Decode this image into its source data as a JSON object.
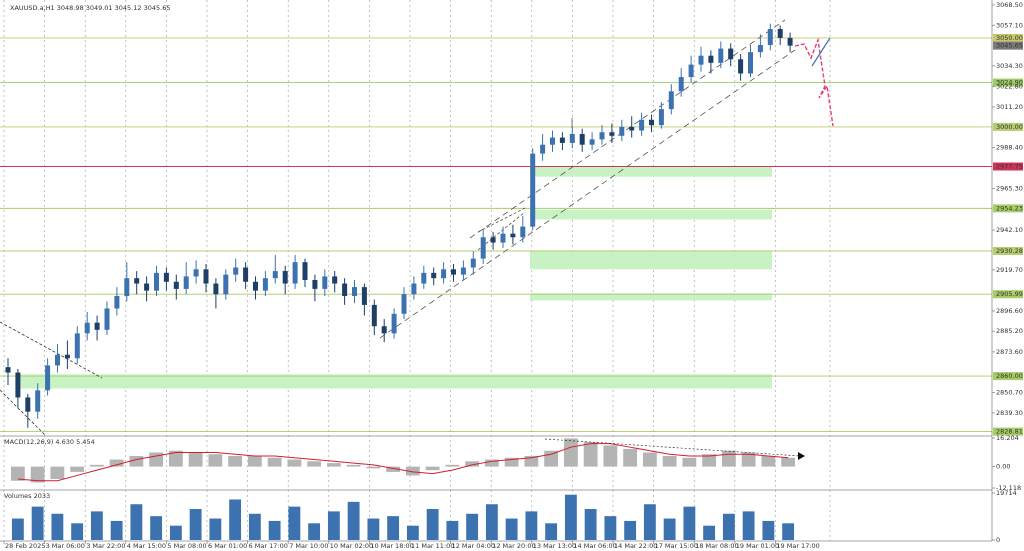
{
  "chart_data": {
    "type": "candlestick",
    "title": "XAUUSD.a,H1  3048.98 3049.01 3045.12 3045.65",
    "ylim": [
      2826.9,
      3071.3
    ],
    "yticks": [
      {
        "value": 3068.5,
        "label": "3068.50"
      },
      {
        "value": 3057.1,
        "label": "3057.10"
      },
      {
        "value": 3034.3,
        "label": "3034.30"
      },
      {
        "value": 3022.8,
        "label": "3022.80"
      },
      {
        "value": 3011.2,
        "label": "3011.20"
      },
      {
        "value": 2988.4,
        "label": "2988.40"
      },
      {
        "value": 2965.3,
        "label": "2965.30"
      },
      {
        "value": 2942.1,
        "label": "2942.10"
      },
      {
        "value": 2919.7,
        "label": "2919.70"
      },
      {
        "value": 2896.6,
        "label": "2896.60"
      },
      {
        "value": 2885.2,
        "label": "2885.20"
      },
      {
        "value": 2873.6,
        "label": "2873.60"
      },
      {
        "value": 2850.7,
        "label": "2850.70"
      },
      {
        "value": 2839.3,
        "label": "2839.30"
      }
    ],
    "xticks": [
      "28 Feb 2025",
      "3 Mar 06:00",
      "3 Mar 22:00",
      "4 Mar 15:00",
      "5 Mar 08:00",
      "6 Mar 01:00",
      "6 Mar 17:00",
      "7 Mar 10:00",
      "10 Mar 02:00",
      "10 Mar 18:00",
      "11 Mar 11:00",
      "12 Mar 04:00",
      "12 Mar 20:00",
      "13 Mar 13:00",
      "14 Mar 06:00",
      "14 Mar 22:00",
      "17 Mar 15:00",
      "18 Mar 08:00",
      "19 Mar 01:00",
      "19 Mar 17:00"
    ],
    "up_color": "#3d72b0",
    "down_color": "#1e3f66",
    "open": [
      2865,
      2862,
      2848,
      2840,
      2852,
      2866,
      2872,
      2870,
      2884,
      2890,
      2886,
      2898,
      2905,
      2915,
      2912,
      2908,
      2918,
      2913,
      2909,
      2916,
      2920,
      2912,
      2906,
      2917,
      2921,
      2913,
      2908,
      2915,
      2919,
      2912,
      2924,
      2914,
      2909,
      2916,
      2912,
      2905,
      2910,
      2900,
      2888,
      2884,
      2895,
      2906,
      2912,
      2918,
      2915,
      2920,
      2917,
      2921,
      2926,
      2938,
      2935,
      2940,
      2938,
      2944,
      2985,
      2990,
      2994,
      2991,
      2996,
      2990,
      2993,
      2997,
      2995,
      3000,
      2998,
      3004,
      3001,
      3010,
      3020,
      3028,
      3035,
      3040,
      3036,
      3044,
      3038,
      3030,
      3042,
      3046,
      3055,
      3050
    ],
    "high": [
      2870,
      2864,
      2850,
      2856,
      2870,
      2878,
      2880,
      2888,
      2896,
      2894,
      2902,
      2910,
      2924,
      2919,
      2916,
      2922,
      2921,
      2917,
      2924,
      2925,
      2923,
      2915,
      2920,
      2926,
      2924,
      2916,
      2919,
      2928,
      2922,
      2928,
      2926,
      2917,
      2920,
      2919,
      2915,
      2914,
      2912,
      2903,
      2892,
      2898,
      2910,
      2916,
      2922,
      2921,
      2924,
      2923,
      2925,
      2930,
      2942,
      2941,
      2944,
      2945,
      2950,
      2988,
      2996,
      2998,
      2997,
      3000,
      2999,
      2997,
      3001,
      3002,
      3004,
      3006,
      3008,
      3007,
      3014,
      3024,
      3033,
      3040,
      3045,
      3043,
      3048,
      3047,
      3041,
      3046,
      3052,
      3058,
      3057,
      3053
    ],
    "low": [
      2855,
      2842,
      2831,
      2836,
      2849,
      2862,
      2864,
      2867,
      2880,
      2880,
      2883,
      2894,
      2902,
      2906,
      2902,
      2905,
      2908,
      2903,
      2906,
      2912,
      2907,
      2898,
      2903,
      2913,
      2909,
      2903,
      2905,
      2912,
      2906,
      2909,
      2910,
      2902,
      2905,
      2907,
      2900,
      2901,
      2894,
      2883,
      2879,
      2881,
      2892,
      2903,
      2909,
      2911,
      2912,
      2913,
      2914,
      2917,
      2923,
      2931,
      2932,
      2934,
      2935,
      2942,
      2981,
      2986,
      2987,
      2988,
      2986,
      2987,
      2990,
      2991,
      2992,
      2994,
      2995,
      2997,
      2999,
      3007,
      3017,
      3025,
      3031,
      3030,
      3033,
      3034,
      3026,
      3028,
      3039,
      3043,
      3046,
      3042
    ],
    "close": [
      2862,
      2848,
      2840,
      2852,
      2866,
      2872,
      2870,
      2884,
      2890,
      2886,
      2898,
      2905,
      2915,
      2912,
      2908,
      2918,
      2913,
      2909,
      2916,
      2920,
      2912,
      2906,
      2917,
      2921,
      2913,
      2908,
      2915,
      2919,
      2912,
      2924,
      2914,
      2909,
      2916,
      2912,
      2905,
      2910,
      2900,
      2888,
      2884,
      2895,
      2906,
      2912,
      2918,
      2915,
      2920,
      2917,
      2921,
      2926,
      2938,
      2935,
      2940,
      2938,
      2944,
      2985,
      2990,
      2994,
      2991,
      2996,
      2990,
      2993,
      2997,
      2995,
      3000,
      2998,
      3004,
      3001,
      3010,
      3020,
      3028,
      3035,
      3040,
      3036,
      3044,
      3038,
      3030,
      3042,
      3046,
      3055,
      3050,
      3045.65
    ],
    "levels": [
      {
        "value": 3050,
        "label": "3050.00",
        "color": "#c6c86a"
      },
      {
        "value": 3045.65,
        "label": "3045.65",
        "color": "#7a7a7a"
      },
      {
        "value": 3024.9,
        "label": "3024.90",
        "color": "#9ccf62"
      },
      {
        "value": 3000,
        "label": "3000.00",
        "color": "#b8cc70"
      },
      {
        "value": 2977.75,
        "label": "2977.75",
        "color": "#cf3358"
      },
      {
        "value": 2954.23,
        "label": "2954.23",
        "color": "#a8cc66"
      },
      {
        "value": 2930.28,
        "label": "2930.28",
        "color": "#b8cc70"
      },
      {
        "value": 2905.99,
        "label": "2905.99",
        "color": "#a8cc66"
      },
      {
        "value": 2860,
        "label": "2860.00",
        "color": "#a8cc66"
      },
      {
        "value": 2828.81,
        "label": "2828.81",
        "color": "#a8cc66"
      }
    ],
    "zones": [
      {
        "low": 2972,
        "high": 2977.6,
        "color": "#c9f2c4"
      },
      {
        "low": 2948,
        "high": 2953.5,
        "color": "#c9f2c4"
      },
      {
        "low": 2920,
        "high": 2930,
        "color": "#c9f2c4"
      },
      {
        "low": 2902.5,
        "high": 2906.5,
        "color": "#c9f2c4"
      },
      {
        "low": 2853,
        "high": 2861,
        "color": "#c9f2c4"
      }
    ],
    "macd": {
      "label": "MACD(12,26,9) 4.630 5.454",
      "ylim": [
        -12.118,
        16.204
      ],
      "yticks": [
        16.204,
        {
          "value": 0,
          "label": "0.00"
        },
        -12.118
      ],
      "histogram": [
        -8,
        -9,
        -7,
        -3,
        1,
        4,
        6,
        8,
        9,
        8,
        7,
        6,
        6,
        5,
        4,
        3,
        2,
        1,
        -1,
        -3,
        -5,
        -2,
        1,
        3,
        4,
        5,
        6,
        9,
        16,
        14,
        12,
        10,
        8,
        6,
        5,
        7,
        9,
        8,
        6,
        5
      ],
      "signal": [
        -7,
        -8,
        -8,
        -5,
        -2,
        1,
        4,
        6,
        8,
        8,
        8,
        7,
        6,
        6,
        5,
        4,
        3,
        2,
        1,
        -1,
        -3,
        -4,
        -2,
        1,
        3,
        4,
        5,
        7,
        11,
        13,
        13,
        11,
        9,
        7,
        6,
        6,
        7,
        7,
        6,
        5
      ],
      "hist_color": "#b4b4b4",
      "signal_color": "#d0202a"
    },
    "volume": {
      "label": "Volumes 2033",
      "ylim": [
        0,
        19714
      ],
      "yticks": [
        19714,
        0
      ],
      "color": "#3d72b0",
      "values": [
        9000,
        14000,
        11000,
        7000,
        12000,
        8000,
        15000,
        10000,
        6000,
        13000,
        9000,
        17000,
        11000,
        8000,
        14000,
        7000,
        12000,
        16000,
        9000,
        10000,
        6000,
        13000,
        8000,
        11000,
        15000,
        9000,
        12000,
        7000,
        19000,
        13000,
        10000,
        8000,
        15000,
        9000,
        14000,
        6000,
        11000,
        12000,
        8000,
        7000
      ]
    }
  }
}
